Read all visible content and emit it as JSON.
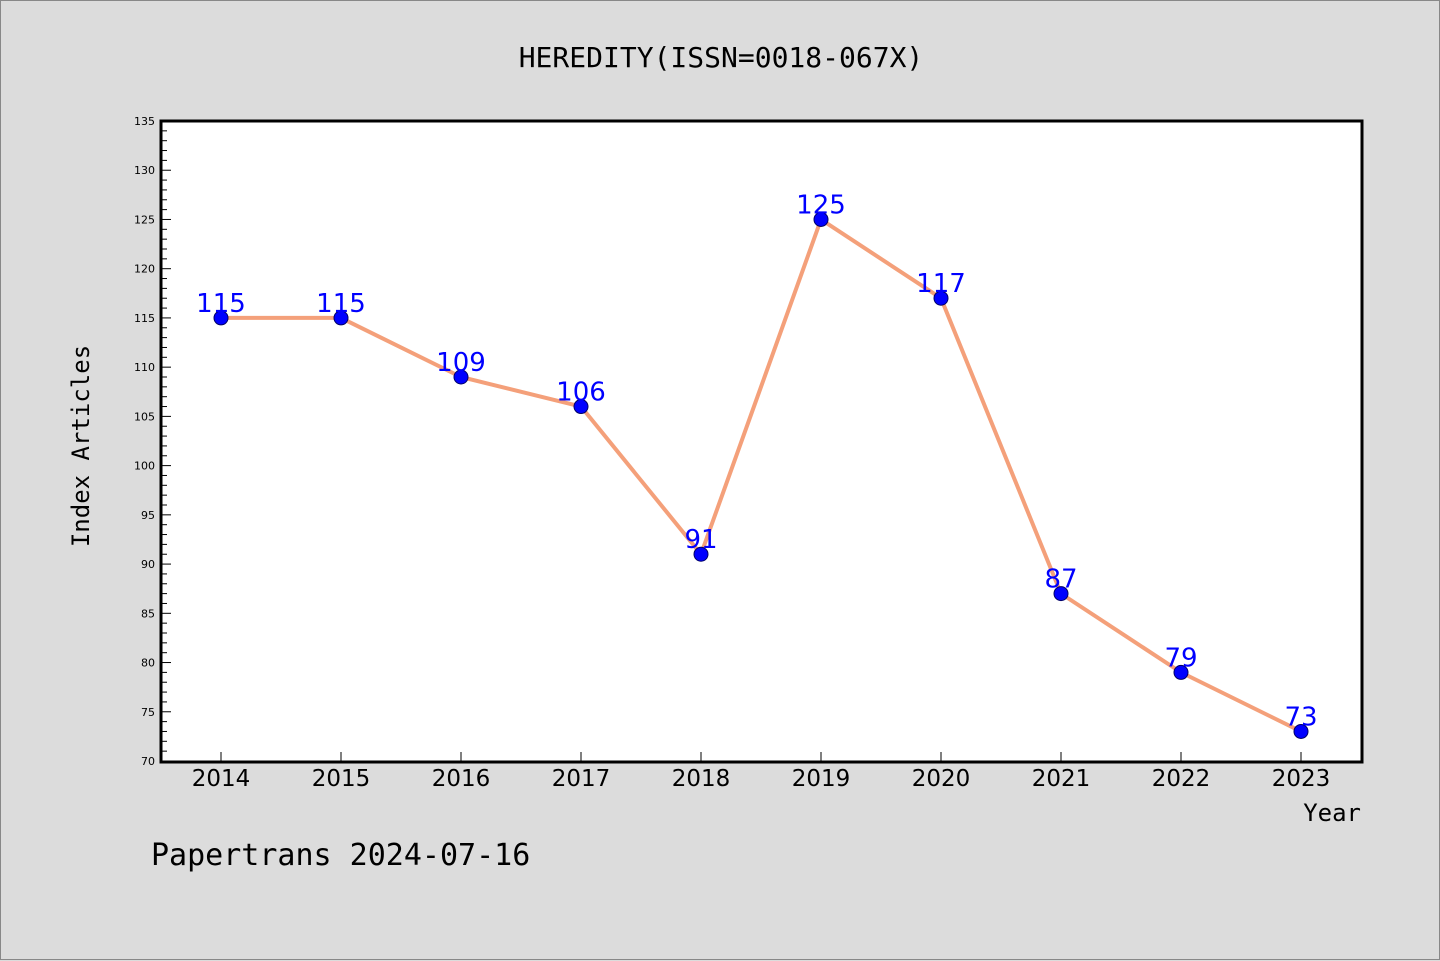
{
  "chart_data": {
    "type": "line",
    "title": "HEREDITY(ISSN=0018-067X)",
    "xlabel": "Year",
    "ylabel": "Index Articles",
    "categories": [
      "2014",
      "2015",
      "2016",
      "2017",
      "2018",
      "2019",
      "2020",
      "2021",
      "2022",
      "2023"
    ],
    "series": [
      {
        "values": [
          115,
          115,
          109,
          106,
          91,
          125,
          117,
          87,
          79,
          73
        ]
      }
    ],
    "data_labels": [
      "115",
      "115",
      "109",
      "106",
      "91",
      "125",
      "117",
      "87",
      "79",
      "73"
    ],
    "ylim": [
      70,
      135
    ],
    "y_ticks": [
      70,
      75,
      80,
      85,
      90,
      95,
      100,
      105,
      110,
      115,
      120,
      125,
      130,
      135
    ],
    "grid": false,
    "legend": "none",
    "colors": {
      "line": "#f4a07a",
      "marker_fill": "#0000ff",
      "marker_stroke": "#000066",
      "data_label": "#0000ff",
      "plot_background": "#ffffff",
      "page_background": "#dcdcdc"
    }
  },
  "footer": {
    "text": "Papertrans 2024-07-16"
  }
}
